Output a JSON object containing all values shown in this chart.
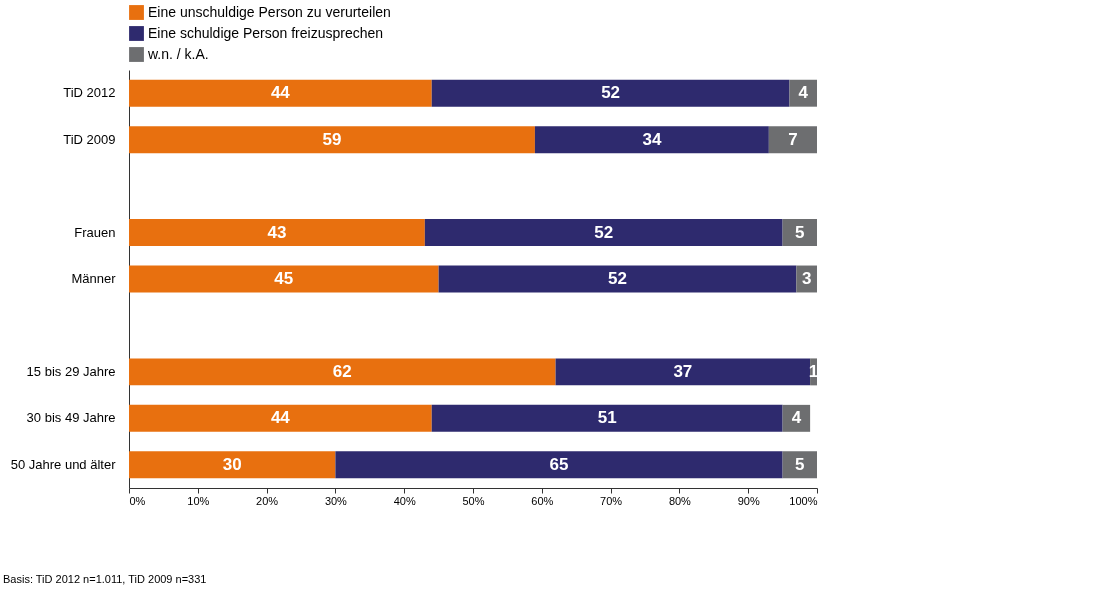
{
  "chart_data": {
    "type": "bar",
    "orientation": "horizontal",
    "stacked": true,
    "data_labels": true,
    "legend": "top",
    "grid": false,
    "categories": [
      "TiD 2012",
      "TiD 2009",
      null,
      "Frauen",
      "Männer",
      null,
      "15 bis 29 Jahre",
      "30 bis 49 Jahre",
      "50 Jahre und älter"
    ],
    "series": [
      {
        "name": "Eine unschuldige Person zu verurteilen",
        "color": "#e8700f",
        "values": [
          44,
          59,
          null,
          43,
          45,
          null,
          62,
          44,
          30
        ]
      },
      {
        "name": "Eine schuldige Person freizusprechen",
        "color": "#2e2a6e",
        "values": [
          52,
          34,
          null,
          52,
          52,
          null,
          37,
          51,
          65
        ]
      },
      {
        "name": "w.n. / k.A.",
        "color": "#6d6e70",
        "values": [
          4,
          7,
          null,
          5,
          3,
          null,
          1,
          4,
          5
        ]
      }
    ],
    "xlim": [
      0,
      100
    ],
    "xticks": [
      {
        "value": 0,
        "label": "0%"
      },
      {
        "value": 10,
        "label": "10%"
      },
      {
        "value": 20,
        "label": "20%"
      },
      {
        "value": 30,
        "label": "30%"
      },
      {
        "value": 40,
        "label": "40%"
      },
      {
        "value": 50,
        "label": "50%"
      },
      {
        "value": 60,
        "label": "60%"
      },
      {
        "value": 70,
        "label": "70%"
      },
      {
        "value": 80,
        "label": "80%"
      },
      {
        "value": 90,
        "label": "90%"
      },
      {
        "value": 100,
        "label": "100%"
      }
    ],
    "annotations": [
      "Basis: TiD 2012 n=1.011, TiD 2009 n=331"
    ]
  }
}
